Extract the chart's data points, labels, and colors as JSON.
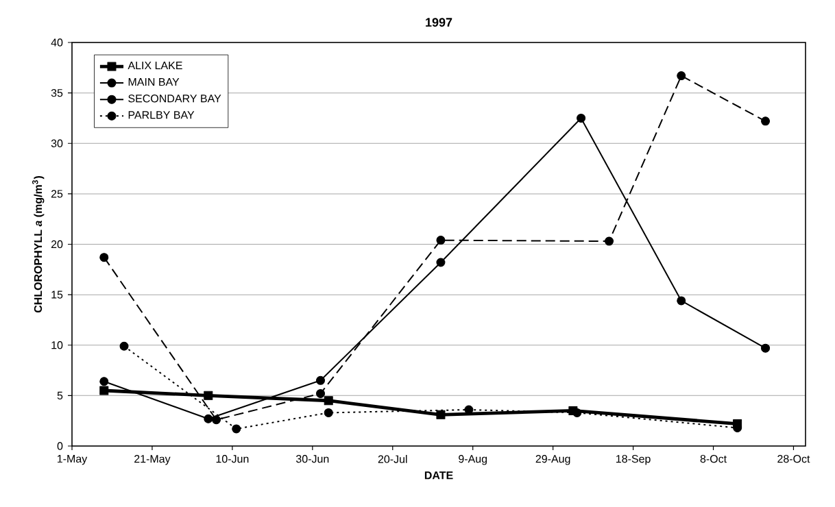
{
  "chart_data": {
    "type": "line",
    "title": "1997",
    "xlabel": "DATE",
    "ylabel": "CHLOROPHYLL *a* (mg/m$^{3}$)",
    "xlim": [
      "1997-05-01",
      "1997-10-31"
    ],
    "xticks": [
      {
        "value": "1997-05-01",
        "label": "1-May"
      },
      {
        "value": "1997-05-21",
        "label": "21-May"
      },
      {
        "value": "1997-06-10",
        "label": "10-Jun"
      },
      {
        "value": "1997-06-30",
        "label": "30-Jun"
      },
      {
        "value": "1997-07-20",
        "label": "20-Jul"
      },
      {
        "value": "1997-08-09",
        "label": "9-Aug"
      },
      {
        "value": "1997-08-29",
        "label": "29-Aug"
      },
      {
        "value": "1997-09-18",
        "label": "18-Sep"
      },
      {
        "value": "1997-10-08",
        "label": "8-Oct"
      },
      {
        "value": "1997-10-28",
        "label": "28-Oct"
      }
    ],
    "ylim": [
      0,
      40
    ],
    "yticks": [
      0,
      5,
      10,
      15,
      20,
      25,
      30,
      35,
      40
    ],
    "grid": "y",
    "legend": "top left",
    "series": [
      {
        "name": "ALIX LAKE",
        "color": "#000000",
        "marker": "square",
        "line_style": "solid",
        "x": [
          "1997-05-09",
          "1997-06-04",
          "1997-07-04",
          "1997-08-01",
          "1997-09-03",
          "1997-10-14"
        ],
        "values": [
          5.5,
          5.0,
          4.5,
          3.1,
          3.5,
          2.2
        ]
      },
      {
        "name": "MAIN BAY",
        "color": "#000000",
        "marker": "circle",
        "line_style": "solid",
        "x": [
          "1997-05-09",
          "1997-06-04",
          "1997-07-02",
          "1997-08-01",
          "1997-09-05",
          "1997-09-30",
          "1997-10-21"
        ],
        "values": [
          6.4,
          2.7,
          6.5,
          18.2,
          32.5,
          14.4,
          9.7
        ]
      },
      {
        "name": "SECONDARY BAY",
        "color": "#000000",
        "marker": "circle",
        "line_style": "dashed",
        "x": [
          "1997-05-09",
          "1997-06-06",
          "1997-07-02",
          "1997-08-01",
          "1997-09-12",
          "1997-09-30",
          "1997-10-21"
        ],
        "values": [
          18.7,
          2.6,
          5.2,
          20.4,
          20.3,
          36.7,
          32.2
        ]
      },
      {
        "name": "PARLBY BAY",
        "color": "#000000",
        "marker": "circle",
        "line_style": "dotted",
        "x": [
          "1997-05-14",
          "1997-06-11",
          "1997-07-04",
          "1997-08-08",
          "1997-09-04",
          "1997-10-14"
        ],
        "values": [
          9.9,
          1.7,
          3.3,
          3.6,
          3.3,
          1.8
        ]
      }
    ]
  }
}
